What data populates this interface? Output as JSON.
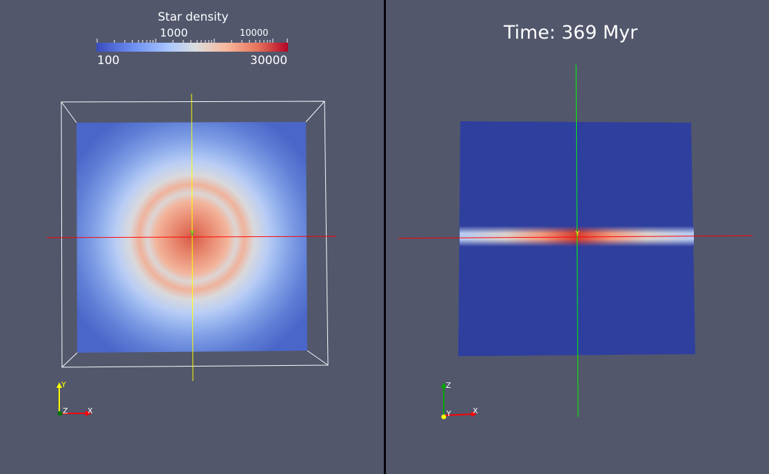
{
  "colorbar": {
    "title": "Star density",
    "min_label": "100",
    "max_label": "30000",
    "mid_labels": [
      "1000",
      "10000"
    ],
    "colors": [
      "#3b4cc0",
      "#6f92f3",
      "#aac7fd",
      "#dddddd",
      "#f7b89c",
      "#e7745b",
      "#b40426"
    ]
  },
  "left_view": {
    "background": "#52576c",
    "orientation_axes": {
      "up": "Y",
      "right": "X",
      "out": "Z"
    },
    "cursor_label": "Y",
    "h_line_color": "#ff0000",
    "v_line_color": "#ffff00"
  },
  "right_view": {
    "time_label": "Time:  369 Myr",
    "background": "#52576c",
    "orientation_axes": {
      "up": "Z",
      "right": "X",
      "out": "Y"
    },
    "cursor_label": "Y",
    "h_line_color": "#ff0000",
    "v_line_color": "#00ff00"
  }
}
